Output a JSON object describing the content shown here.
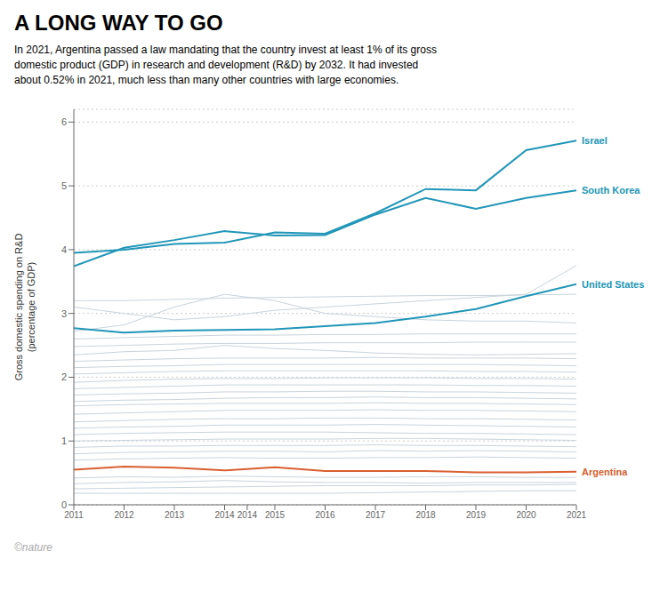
{
  "chart_data": {
    "type": "line",
    "title": "A LONG WAY TO GO",
    "subtitle": "In 2021, Argentina passed a law mandating that the country invest at least 1% of its gross\ndomestic product (GDP) in research and development (R&D) by 2032. It had invested\nabout 0.52% in 2021, much less than many other countries with large economies.",
    "ylabel": "Gross domestic spending on R&D\n(percentage of GDP)",
    "annotations": [
      "©nature"
    ],
    "x": [
      2011,
      2012,
      2013,
      2014,
      2015,
      2016,
      2017,
      2018,
      2019,
      2020,
      2021
    ],
    "xlim": [
      2011,
      2021
    ],
    "xticks": [
      2011,
      2012,
      2013,
      2014,
      {
        "value": 2014.45,
        "label": "2014"
      },
      2015,
      2016,
      2017,
      2018,
      2019,
      2020,
      2021
    ],
    "ylim": [
      0,
      6.2
    ],
    "yticks": [
      0,
      1,
      2,
      3,
      4,
      5,
      6
    ],
    "grid": true,
    "series": [
      {
        "color": "#c8d4dc",
        "values": [
          0.18,
          0.18,
          0.18,
          0.18,
          0.18,
          0.18,
          0.19,
          0.2,
          0.21,
          0.22,
          0.22
        ]
      },
      {
        "color": "#c8d4dc",
        "values": [
          0.25,
          0.26,
          0.27,
          0.28,
          0.29,
          0.3,
          0.3,
          0.3,
          0.31,
          0.31,
          0.32
        ]
      },
      {
        "color": "#c8d4dc",
        "values": [
          0.33,
          0.35,
          0.36,
          0.38,
          0.36,
          0.35,
          0.35,
          0.34,
          0.35,
          0.35,
          0.35
        ]
      },
      {
        "color": "#c8d4dc",
        "values": [
          0.42,
          0.44,
          0.43,
          0.45,
          0.44,
          0.43,
          0.43,
          0.44,
          0.44,
          0.43,
          0.43
        ]
      },
      {
        "color": "#c8d4dc",
        "values": [
          0.7,
          0.72,
          0.73,
          0.74,
          0.73,
          0.73,
          0.74,
          0.74,
          0.75,
          0.74,
          0.73
        ]
      },
      {
        "color": "#c8d4dc",
        "values": [
          0.8,
          0.82,
          0.83,
          0.84,
          0.84,
          0.83,
          0.85,
          0.84,
          0.85,
          0.84,
          0.83
        ]
      },
      {
        "color": "#c8d4dc",
        "values": [
          0.9,
          0.92,
          0.92,
          0.93,
          0.93,
          0.93,
          0.94,
          0.93,
          0.93,
          0.92,
          0.91
        ]
      },
      {
        "color": "#c8d4dc",
        "values": [
          1.0,
          1.01,
          1.02,
          1.03,
          1.03,
          1.03,
          1.04,
          1.04,
          1.03,
          1.02,
          1.01
        ]
      },
      {
        "color": "#c8d4dc",
        "values": [
          1.1,
          1.12,
          1.13,
          1.14,
          1.14,
          1.14,
          1.13,
          1.12,
          1.12,
          1.11,
          1.1
        ]
      },
      {
        "color": "#c8d4dc",
        "values": [
          1.2,
          1.22,
          1.23,
          1.25,
          1.25,
          1.25,
          1.26,
          1.25,
          1.24,
          1.23,
          1.22
        ]
      },
      {
        "color": "#c8d4dc",
        "values": [
          1.3,
          1.32,
          1.34,
          1.35,
          1.35,
          1.36,
          1.36,
          1.35,
          1.35,
          1.34,
          1.33
        ]
      },
      {
        "color": "#c8d4dc",
        "values": [
          1.42,
          1.44,
          1.46,
          1.48,
          1.48,
          1.48,
          1.49,
          1.48,
          1.48,
          1.47,
          1.46
        ]
      },
      {
        "color": "#c8d4dc",
        "values": [
          1.55,
          1.57,
          1.58,
          1.59,
          1.59,
          1.59,
          1.6,
          1.59,
          1.59,
          1.58,
          1.57
        ]
      },
      {
        "color": "#c8d4dc",
        "values": [
          1.62,
          1.64,
          1.65,
          1.67,
          1.68,
          1.68,
          1.69,
          1.68,
          1.68,
          1.67,
          1.66
        ]
      },
      {
        "color": "#c8d4dc",
        "values": [
          1.72,
          1.74,
          1.75,
          1.77,
          1.77,
          1.78,
          1.78,
          1.77,
          1.77,
          1.76,
          1.75
        ]
      },
      {
        "color": "#c8d4dc",
        "values": [
          1.82,
          1.84,
          1.86,
          1.88,
          1.88,
          1.88,
          1.88,
          1.88,
          1.87,
          1.87,
          1.86
        ]
      },
      {
        "color": "#c8d4dc",
        "values": [
          1.92,
          1.95,
          1.97,
          1.98,
          1.98,
          1.99,
          1.99,
          1.99,
          1.98,
          1.98,
          1.97
        ]
      },
      {
        "color": "#c8d4dc",
        "values": [
          2.05,
          2.07,
          2.09,
          2.1,
          2.1,
          2.1,
          2.1,
          2.1,
          2.09,
          2.09,
          2.08
        ]
      },
      {
        "color": "#c8d4dc",
        "values": [
          2.15,
          2.17,
          2.18,
          2.2,
          2.2,
          2.2,
          2.2,
          2.2,
          2.2,
          2.19,
          2.18
        ]
      },
      {
        "color": "#c8d4dc",
        "values": [
          2.25,
          2.27,
          2.29,
          2.3,
          2.3,
          2.3,
          2.31,
          2.3,
          2.3,
          2.3,
          2.29
        ]
      },
      {
        "color": "#c8d4dc",
        "values": [
          2.35,
          2.4,
          2.42,
          2.5,
          2.45,
          2.42,
          2.38,
          2.36,
          2.35,
          2.36,
          2.37
        ]
      },
      {
        "color": "#c8d4dc",
        "values": [
          2.48,
          2.5,
          2.52,
          2.53,
          2.53,
          2.54,
          2.54,
          2.54,
          2.55,
          2.55,
          2.55
        ]
      },
      {
        "color": "#c8d4dc",
        "values": [
          2.6,
          2.62,
          2.64,
          2.66,
          2.66,
          2.67,
          2.67,
          2.68,
          2.68,
          2.68,
          2.68
        ]
      },
      {
        "color": "#c8d4dc",
        "values": [
          2.72,
          2.82,
          3.1,
          3.3,
          3.2,
          3.0,
          2.95,
          2.9,
          2.88,
          2.88,
          2.85
        ]
      },
      {
        "color": "#c8d4dc",
        "values": [
          3.1,
          3.0,
          2.9,
          2.95,
          3.05,
          3.1,
          3.15,
          3.2,
          3.25,
          3.3,
          3.75
        ]
      },
      {
        "color": "#c8d4dc",
        "values": [
          3.2,
          3.2,
          3.22,
          3.24,
          3.25,
          3.26,
          3.27,
          3.28,
          3.28,
          3.29,
          3.3
        ]
      },
      {
        "name": "Israel",
        "color": "#2196b8",
        "values": [
          3.95,
          4.0,
          4.09,
          4.11,
          4.27,
          4.25,
          4.57,
          4.95,
          4.93,
          5.56,
          5.71
        ]
      },
      {
        "name": "South Korea",
        "color": "#2196b8",
        "values": [
          3.74,
          4.03,
          4.15,
          4.29,
          4.22,
          4.23,
          4.55,
          4.81,
          4.64,
          4.81,
          4.93
        ]
      },
      {
        "name": "United States",
        "color": "#2196b8",
        "values": [
          2.77,
          2.7,
          2.73,
          2.74,
          2.75,
          2.8,
          2.85,
          2.95,
          3.07,
          3.27,
          3.46
        ]
      },
      {
        "name": "Argentina",
        "color": "#d95f30",
        "values": [
          0.55,
          0.6,
          0.58,
          0.54,
          0.59,
          0.53,
          0.53,
          0.53,
          0.51,
          0.51,
          0.52
        ]
      }
    ]
  }
}
